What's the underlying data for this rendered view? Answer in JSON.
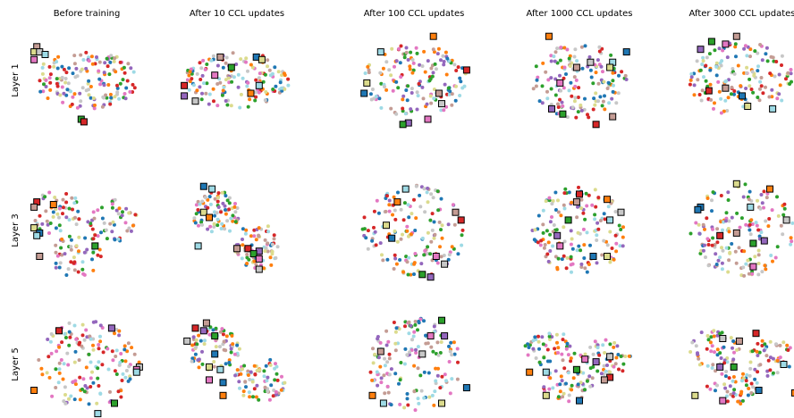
{
  "chart_data": {
    "type": "scatter",
    "grid": false,
    "column_titles": [
      "Before training",
      "After 10 CCL updates",
      "After 100 CCL updates",
      "After 1000 CCL updates",
      "After 3000 CCL updates"
    ],
    "row_labels": [
      "Layer 1",
      "Layer 3",
      "Layer 5"
    ],
    "palette": [
      "#1f77b4",
      "#ff7f0e",
      "#2ca02c",
      "#d62728",
      "#9467bd",
      "#c49c94",
      "#e377c2",
      "#c7c7c7",
      "#dbdb8d",
      "#9edae5"
    ],
    "marker_style": {
      "squares": "class prototypes (outlined)",
      "dots": "samples"
    },
    "panels": [
      {
        "row": 0,
        "col": 0,
        "spread": [
          0.95,
          0.55
        ],
        "clusters": 1,
        "seed": 11,
        "markers": [
          [
            -0.9,
            -0.65,
            5
          ],
          [
            -0.95,
            -0.55,
            8
          ],
          [
            -0.85,
            -0.55,
            7
          ],
          [
            -0.75,
            -0.5,
            9
          ],
          [
            -0.95,
            -0.4,
            6
          ],
          [
            -0.1,
            0.75,
            2
          ],
          [
            -0.05,
            0.8,
            3
          ]
        ]
      },
      {
        "row": 0,
        "col": 1,
        "spread": [
          0.95,
          0.55
        ],
        "clusters": 1,
        "seed": 12,
        "markers": [
          [
            -0.3,
            -0.45,
            5
          ],
          [
            0.35,
            -0.45,
            0
          ],
          [
            0.45,
            -0.4,
            8
          ],
          [
            -0.1,
            -0.25,
            2
          ],
          [
            -0.4,
            -0.1,
            6
          ],
          [
            -0.95,
            0.1,
            3
          ],
          [
            0.4,
            0.1,
            9
          ],
          [
            0.25,
            0.25,
            1
          ],
          [
            -0.95,
            0.3,
            4
          ],
          [
            -0.75,
            0.4,
            7
          ]
        ]
      },
      {
        "row": 0,
        "col": 2,
        "spread": [
          0.95,
          0.7
        ],
        "clusters": 1,
        "seed": 13,
        "markers": [
          [
            0.35,
            -0.85,
            1
          ],
          [
            -0.6,
            -0.55,
            9
          ],
          [
            0.95,
            -0.2,
            3
          ],
          [
            -0.85,
            0.05,
            8
          ],
          [
            -0.9,
            0.25,
            0
          ],
          [
            0.45,
            0.25,
            5
          ],
          [
            0.5,
            0.45,
            7
          ],
          [
            0.25,
            0.75,
            6
          ],
          [
            -0.1,
            0.82,
            4
          ],
          [
            -0.2,
            0.85,
            2
          ]
        ]
      },
      {
        "row": 0,
        "col": 3,
        "spread": [
          0.85,
          0.75
        ],
        "clusters": 1,
        "seed": 14,
        "markers": [
          [
            -0.55,
            -0.85,
            1
          ],
          [
            0.85,
            -0.55,
            0
          ],
          [
            0.6,
            -0.35,
            9
          ],
          [
            0.55,
            -0.25,
            8
          ],
          [
            0.2,
            -0.35,
            7
          ],
          [
            -0.05,
            -0.25,
            5
          ],
          [
            -0.35,
            0.05,
            6
          ],
          [
            -0.5,
            0.55,
            4
          ],
          [
            -0.3,
            0.65,
            2
          ],
          [
            0.6,
            0.7,
            5
          ],
          [
            0.3,
            0.85,
            3
          ]
        ]
      },
      {
        "row": 0,
        "col": 4,
        "spread": [
          0.95,
          0.75
        ],
        "clusters": 1,
        "seed": 15,
        "markers": [
          [
            -0.1,
            -0.85,
            5
          ],
          [
            -0.55,
            -0.75,
            2
          ],
          [
            -0.3,
            -0.7,
            6
          ],
          [
            -0.75,
            -0.6,
            4
          ],
          [
            -0.6,
            0.2,
            3
          ],
          [
            -0.3,
            0.15,
            5
          ],
          [
            0.0,
            0.3,
            0
          ],
          [
            0.1,
            0.5,
            8
          ],
          [
            0.55,
            0.55,
            9
          ]
        ]
      },
      {
        "row": 1,
        "col": 0,
        "spread": [
          0.95,
          0.85
        ],
        "clusters": 3,
        "seed": 21,
        "markers": [
          [
            -0.9,
            -0.55,
            3
          ],
          [
            -0.95,
            -0.45,
            5
          ],
          [
            -0.6,
            -0.5,
            1
          ],
          [
            -0.95,
            -0.05,
            8
          ],
          [
            -0.85,
            0.05,
            0
          ],
          [
            -0.9,
            0.1,
            9
          ],
          [
            0.15,
            0.3,
            2
          ],
          [
            -0.85,
            0.5,
            5
          ]
        ]
      },
      {
        "row": 1,
        "col": 1,
        "spread": [
          0.85,
          0.9
        ],
        "clusters": 2,
        "seed": 22,
        "markers": [
          [
            -0.6,
            -0.85,
            0
          ],
          [
            -0.45,
            -0.8,
            9
          ],
          [
            -0.6,
            -0.35,
            8
          ],
          [
            -0.5,
            -0.25,
            1
          ],
          [
            -0.7,
            0.3,
            9
          ],
          [
            0.0,
            0.35,
            5
          ],
          [
            0.2,
            0.35,
            3
          ],
          [
            0.4,
            0.4,
            4
          ],
          [
            0.3,
            0.45,
            2
          ],
          [
            0.4,
            0.55,
            6
          ],
          [
            0.4,
            0.75,
            7
          ]
        ]
      },
      {
        "row": 1,
        "col": 2,
        "spread": [
          0.95,
          0.9
        ],
        "clusters": 1,
        "seed": 23,
        "markers": [
          [
            -0.15,
            -0.8,
            9
          ],
          [
            -0.3,
            -0.55,
            1
          ],
          [
            0.75,
            -0.35,
            5
          ],
          [
            0.85,
            -0.2,
            3
          ],
          [
            -0.5,
            -0.1,
            8
          ],
          [
            -0.4,
            0.15,
            0
          ],
          [
            0.4,
            0.5,
            6
          ],
          [
            0.55,
            0.65,
            7
          ],
          [
            0.15,
            0.85,
            2
          ],
          [
            0.3,
            0.9,
            4
          ]
        ]
      },
      {
        "row": 1,
        "col": 3,
        "spread": [
          0.85,
          0.85
        ],
        "clusters": 1,
        "seed": 24,
        "markers": [
          [
            0.0,
            -0.7,
            3
          ],
          [
            0.5,
            -0.6,
            1
          ],
          [
            -0.05,
            -0.55,
            5
          ],
          [
            0.75,
            -0.35,
            7
          ],
          [
            -0.2,
            -0.2,
            2
          ],
          [
            0.55,
            -0.2,
            9
          ],
          [
            -0.4,
            0.1,
            4
          ],
          [
            -0.35,
            0.3,
            6
          ],
          [
            0.25,
            0.5,
            0
          ],
          [
            0.5,
            0.5,
            8
          ]
        ]
      },
      {
        "row": 1,
        "col": 4,
        "spread": [
          0.95,
          0.9
        ],
        "clusters": 1,
        "seed": 25,
        "markers": [
          [
            -0.1,
            -0.9,
            8
          ],
          [
            0.5,
            -0.8,
            1
          ],
          [
            -0.75,
            -0.45,
            0
          ],
          [
            -0.8,
            -0.4,
            0
          ],
          [
            0.15,
            -0.45,
            9
          ],
          [
            0.8,
            -0.2,
            7
          ],
          [
            -0.4,
            0.1,
            3
          ],
          [
            -0.1,
            0.05,
            5
          ],
          [
            0.2,
            0.25,
            2
          ],
          [
            0.4,
            0.2,
            4
          ],
          [
            0.2,
            0.7,
            6
          ]
        ]
      },
      {
        "row": 2,
        "col": 0,
        "spread": [
          0.95,
          0.85
        ],
        "clusters": 1,
        "seed": 31,
        "markers": [
          [
            -0.5,
            -0.65,
            3
          ],
          [
            0.45,
            -0.7,
            4
          ],
          [
            0.95,
            0.05,
            7
          ],
          [
            0.9,
            0.1,
            6
          ],
          [
            0.9,
            0.15,
            9
          ],
          [
            -0.95,
            0.5,
            1
          ],
          [
            0.5,
            0.75,
            2
          ],
          [
            0.2,
            0.95,
            9
          ]
        ]
      },
      {
        "row": 2,
        "col": 1,
        "spread": [
          0.95,
          0.85
        ],
        "clusters": 2,
        "seed": 32,
        "markers": [
          [
            -0.55,
            -0.8,
            5
          ],
          [
            -0.75,
            -0.7,
            3
          ],
          [
            -0.6,
            -0.65,
            4
          ],
          [
            -0.4,
            -0.55,
            2
          ],
          [
            -0.9,
            -0.45,
            7
          ],
          [
            -0.4,
            -0.2,
            0
          ],
          [
            -0.5,
            0.05,
            8
          ],
          [
            -0.3,
            0.1,
            9
          ],
          [
            -0.5,
            0.3,
            6
          ],
          [
            -0.25,
            0.35,
            0
          ],
          [
            -0.25,
            0.6,
            1
          ]
        ]
      },
      {
        "row": 2,
        "col": 2,
        "spread": [
          0.85,
          0.9
        ],
        "clusters": 1,
        "seed": 33,
        "markers": [
          [
            0.5,
            -0.85,
            2
          ],
          [
            0.55,
            -0.55,
            4
          ],
          [
            0.3,
            -0.55,
            6
          ],
          [
            -0.6,
            -0.25,
            5
          ],
          [
            0.15,
            -0.2,
            7
          ],
          [
            0.95,
            0.45,
            0
          ],
          [
            -0.75,
            0.6,
            1
          ],
          [
            -0.55,
            0.75,
            9
          ],
          [
            0.5,
            0.75,
            8
          ]
        ]
      },
      {
        "row": 2,
        "col": 3,
        "spread": [
          0.95,
          0.7
        ],
        "clusters": 3,
        "seed": 34,
        "markers": [
          [
            0.55,
            -0.15,
            7
          ],
          [
            0.1,
            -0.1,
            6
          ],
          [
            0.3,
            -0.05,
            4
          ],
          [
            -0.05,
            0.1,
            2
          ],
          [
            -0.9,
            0.15,
            1
          ],
          [
            -0.6,
            0.15,
            9
          ],
          [
            0.55,
            0.25,
            3
          ],
          [
            0.45,
            0.3,
            5
          ],
          [
            -0.6,
            0.6,
            8
          ],
          [
            0.0,
            0.7,
            0
          ]
        ]
      },
      {
        "row": 2,
        "col": 4,
        "spread": [
          0.95,
          0.75
        ],
        "clusters": 3,
        "seed": 35,
        "markers": [
          [
            0.25,
            -0.6,
            3
          ],
          [
            -0.35,
            -0.5,
            7
          ],
          [
            -0.05,
            -0.45,
            5
          ],
          [
            -0.4,
            0.05,
            4
          ],
          [
            -0.15,
            0.05,
            2
          ],
          [
            0.75,
            0.0,
            9
          ],
          [
            0.3,
            0.5,
            0
          ],
          [
            -0.85,
            0.6,
            8
          ],
          [
            -0.35,
            0.7,
            6
          ],
          [
            0.95,
            0.55,
            1
          ]
        ]
      }
    ]
  }
}
